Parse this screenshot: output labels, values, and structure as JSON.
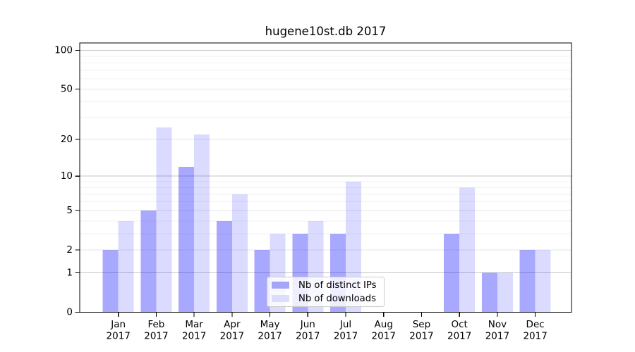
{
  "chart_data": {
    "type": "bar",
    "title": "hugene10st.db 2017",
    "x_months": [
      "Jan",
      "Feb",
      "Mar",
      "Apr",
      "May",
      "Jun",
      "Jul",
      "Aug",
      "Sep",
      "Oct",
      "Nov",
      "Dec"
    ],
    "x_year": "2017",
    "categories": [
      "Jan 2017",
      "Feb 2017",
      "Mar 2017",
      "Apr 2017",
      "May 2017",
      "Jun 2017",
      "Jul 2017",
      "Aug 2017",
      "Sep 2017",
      "Oct 2017",
      "Nov 2017",
      "Dec 2017"
    ],
    "series": [
      {
        "name": "Nb of distinct IPs",
        "values": [
          2,
          5,
          12,
          4,
          2,
          3,
          3,
          0,
          0,
          3,
          1,
          2
        ],
        "color": "#0000ff",
        "alpha": 0.34,
        "swatch": "#a6a6f9"
      },
      {
        "name": "Nb of downloads",
        "values": [
          4,
          25,
          22,
          7,
          3,
          4,
          9,
          0,
          0,
          8,
          1,
          2
        ],
        "color": "#0000ff",
        "alpha": 0.14,
        "swatch": "#dcdcfc"
      }
    ],
    "y_scale": "log1p",
    "ylim": [
      0,
      114
    ],
    "y_ticks_labeled": [
      0,
      1,
      2,
      5,
      10,
      20,
      50,
      100
    ],
    "y_gridlines_decade": [
      1,
      10,
      100
    ],
    "y_gridlines_labeled": [
      2,
      5,
      20,
      50
    ],
    "y_gridlines_minor": [
      3,
      4,
      6,
      7,
      8,
      9,
      30,
      40,
      60,
      70,
      80,
      90
    ],
    "grid": true,
    "legend_position": "lower-center",
    "grid_colors": {
      "decade": "#c6c6c6",
      "labeled": "#e5e5e5",
      "minor": "#f2f2f2"
    },
    "axis_color": "#000000"
  }
}
